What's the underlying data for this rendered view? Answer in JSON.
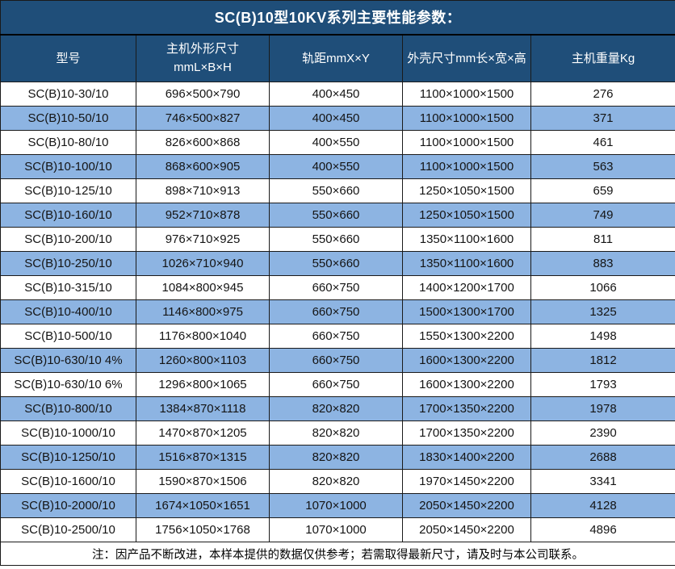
{
  "chart_data": {
    "type": "table",
    "title": "SC(B)10型10KV系列主要性能参数：",
    "columns": [
      {
        "label": "型号",
        "label2": ""
      },
      {
        "label": "主机外形尺寸",
        "label2": "mmL×B×H"
      },
      {
        "label": "轨距mmX×Y",
        "label2": ""
      },
      {
        "label": "外壳尺寸mm长×宽×高",
        "label2": ""
      },
      {
        "label": "主机重量Kg",
        "label2": ""
      }
    ],
    "rows": [
      [
        "SC(B)10-30/10",
        "696×500×790",
        "400×450",
        "1100×1000×1500",
        "276"
      ],
      [
        "SC(B)10-50/10",
        "746×500×827",
        "400×450",
        "1100×1000×1500",
        "371"
      ],
      [
        "SC(B)10-80/10",
        "826×600×868",
        "400×550",
        "1100×1000×1500",
        "461"
      ],
      [
        "SC(B)10-100/10",
        "868×600×905",
        "400×550",
        "1100×1000×1500",
        "563"
      ],
      [
        "SC(B)10-125/10",
        "898×710×913",
        "550×660",
        "1250×1050×1500",
        "659"
      ],
      [
        "SC(B)10-160/10",
        "952×710×878",
        "550×660",
        "1250×1050×1500",
        "749"
      ],
      [
        "SC(B)10-200/10",
        "976×710×925",
        "550×660",
        "1350×1100×1600",
        "811"
      ],
      [
        "SC(B)10-250/10",
        "1026×710×940",
        "550×660",
        "1350×1100×1600",
        "883"
      ],
      [
        "SC(B)10-315/10",
        "1084×800×945",
        "660×750",
        "1400×1200×1700",
        "1066"
      ],
      [
        "SC(B)10-400/10",
        "1146×800×975",
        "660×750",
        "1500×1300×1700",
        "1325"
      ],
      [
        "SC(B)10-500/10",
        "1176×800×1040",
        "660×750",
        "1550×1300×2200",
        "1498"
      ],
      [
        "SC(B)10-630/10 4%",
        "1260×800×1103",
        "660×750",
        "1600×1300×2200",
        "1812"
      ],
      [
        "SC(B)10-630/10 6%",
        "1296×800×1065",
        "660×750",
        "1600×1300×2200",
        "1793"
      ],
      [
        "SC(B)10-800/10",
        "1384×870×1118",
        "820×820",
        "1700×1350×2200",
        "1978"
      ],
      [
        "SC(B)10-1000/10",
        "1470×870×1205",
        "820×820",
        "1700×1350×2200",
        "2390"
      ],
      [
        "SC(B)10-1250/10",
        "1516×870×1315",
        "820×820",
        "1830×1400×2200",
        "2688"
      ],
      [
        "SC(B)10-1600/10",
        "1590×870×1506",
        "820×820",
        "1970×1450×2200",
        "3341"
      ],
      [
        "SC(B)10-2000/10",
        "1674×1050×1651",
        "1070×1000",
        "2050×1450×2200",
        "4128"
      ],
      [
        "SC(B)10-2500/10",
        "1756×1050×1768",
        "1070×1000",
        "2050×1450×2200",
        "4896"
      ]
    ],
    "note": "注：因产品不断改进，本样本提供的数据仅供参考；若需取得最新尺寸，请及时与本公司联系。"
  },
  "colors": {
    "header_bg": "#1f4e79",
    "stripe_bg": "#8db4e2",
    "border": "#1a1a1a",
    "header_text": "#ffffff",
    "body_text": "#141414"
  }
}
